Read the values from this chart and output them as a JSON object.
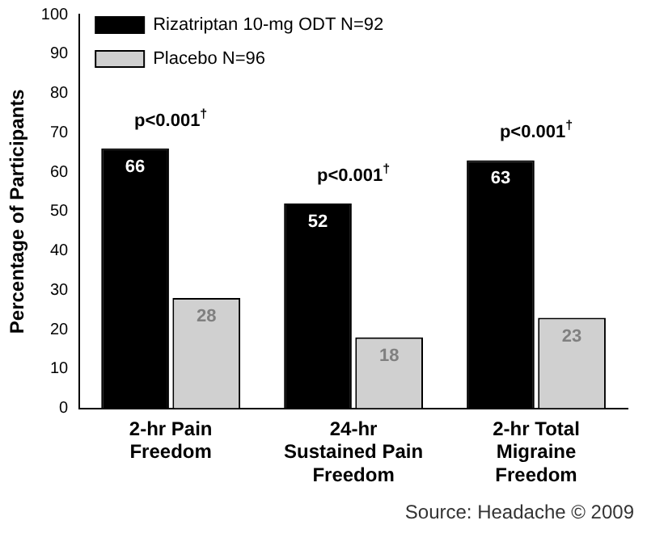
{
  "chart_data": {
    "type": "bar",
    "ylabel": "Percentage of Participants",
    "categories": [
      "2-hr Pain Freedom",
      "24-hr Sustained Pain Freedom",
      "2-hr Total Migraine Freedom"
    ],
    "series": [
      {
        "name": "Rizatriptan 10-mg ODT N=92",
        "color": "#000000",
        "values": [
          66,
          52,
          63
        ]
      },
      {
        "name": "Placebo N=96",
        "color": "#d0d0d0",
        "values": [
          28,
          18,
          23
        ]
      }
    ],
    "ylim": [
      0,
      100
    ],
    "yticks": [
      0,
      10,
      20,
      30,
      40,
      50,
      60,
      70,
      80,
      90,
      100
    ],
    "grid": false,
    "legend": "top left",
    "data_labels": true,
    "annotations": [
      "p<0.001$^{†}$",
      "p<0.001$^{†}$",
      "p<0.001$^{†}$",
      "Source: Headache © 2009"
    ]
  }
}
